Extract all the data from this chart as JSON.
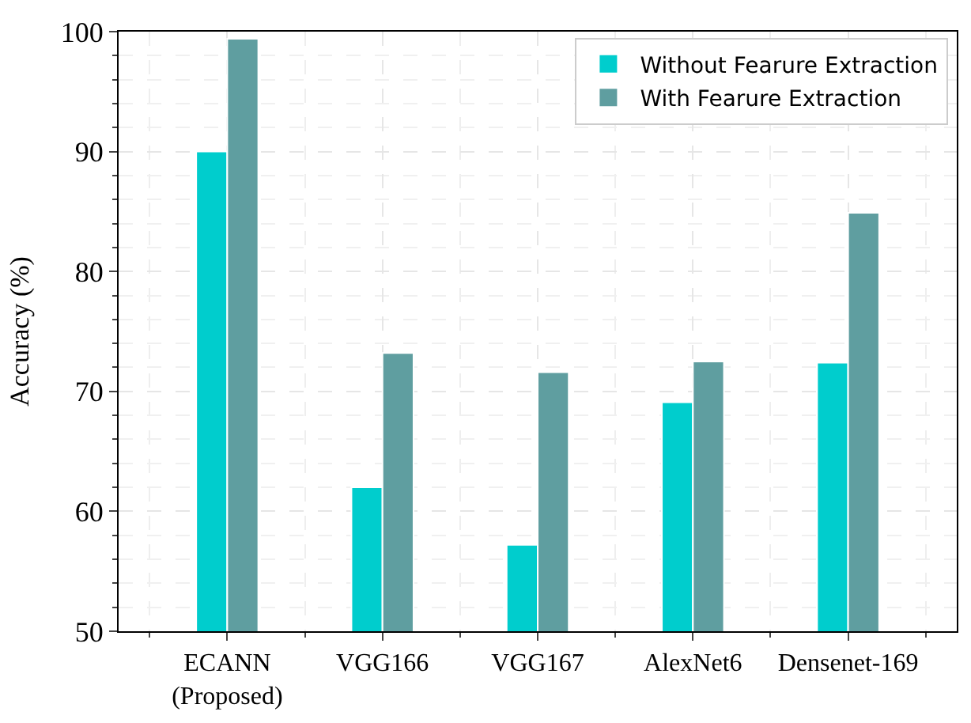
{
  "chart_data": {
    "type": "bar",
    "ylabel": "Accuracy (%)",
    "categories": [
      "ECANN\n(Proposed)",
      "VGG166",
      "VGG167",
      "AlexNet6",
      "Densenet-169"
    ],
    "series": [
      {
        "name": "Without Fearure Extraction",
        "color": "#00cdcd",
        "values": [
          90.0,
          62.0,
          57.2,
          69.1,
          72.4
        ]
      },
      {
        "name": "With Fearure Extraction",
        "color": "#5f9ea0",
        "values": [
          99.4,
          73.2,
          71.6,
          72.5,
          84.9
        ]
      }
    ],
    "ylim": [
      50,
      100
    ],
    "yticks": [
      50,
      60,
      70,
      80,
      90,
      100
    ],
    "grid": true,
    "legend": "top right"
  }
}
